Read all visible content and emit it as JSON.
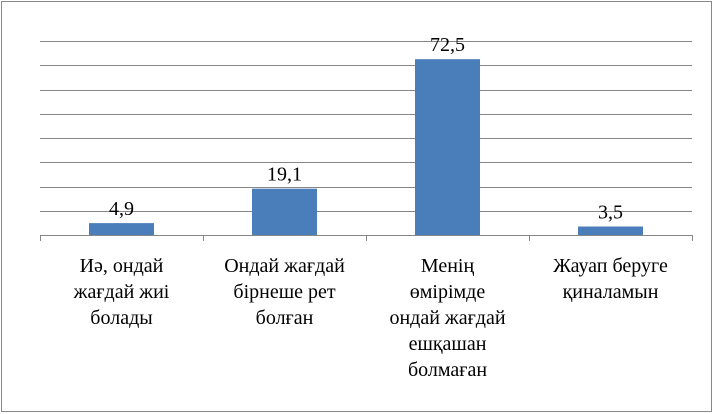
{
  "chart_data": {
    "type": "bar",
    "categories": [
      "Иә, ондай\nжағдай жиі\nболады",
      "Ондай жағдай\nбірнеше рет\nболған",
      "Менің\nөмірімде\nондай жағдай\nешқашан\nболмаған",
      "Жауап беруге\nқиналамын"
    ],
    "values": [
      4.9,
      19.1,
      72.5,
      3.5
    ],
    "value_labels": [
      "4,9",
      "19,1",
      "72,5",
      "3,5"
    ],
    "color": "#4a7ebb",
    "ylim": [
      0,
      80
    ],
    "yticks": [
      0,
      10,
      20,
      30,
      40,
      50,
      60,
      70,
      80
    ],
    "grid": true
  }
}
